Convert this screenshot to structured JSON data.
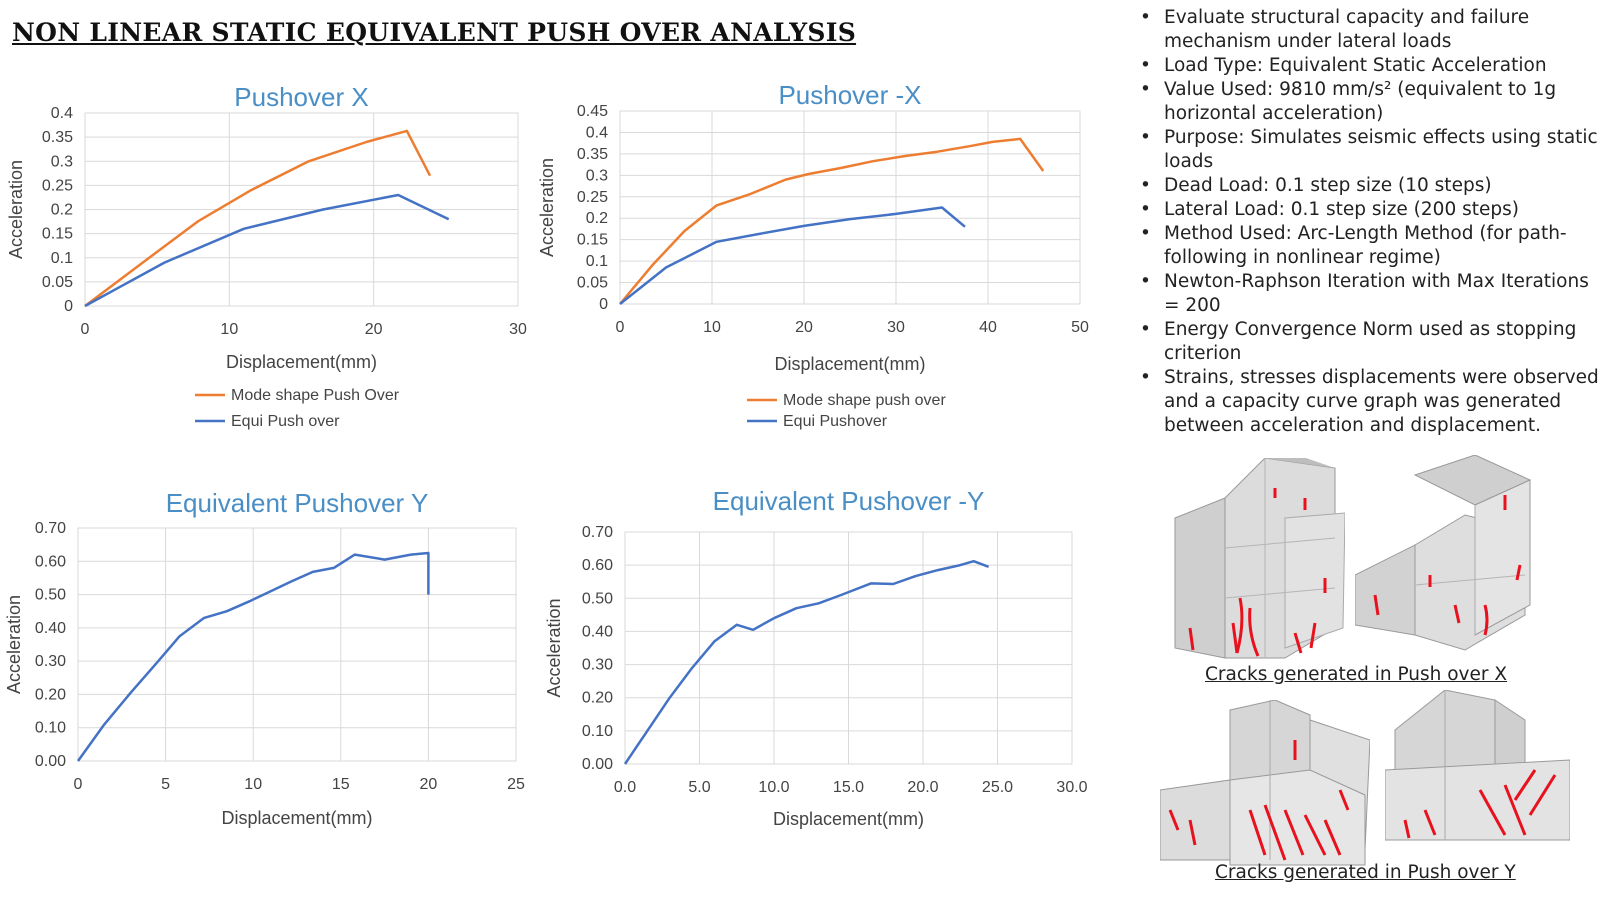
{
  "page": {
    "title": "NON LINEAR STATIC EQUIVALENT PUSH OVER ANALYSIS"
  },
  "notes": [
    "Evaluate structural capacity and failure mechanism under lateral loads",
    "Load Type: Equivalent Static Acceleration",
    "Value Used: 9810 mm/s² (equivalent to 1g horizontal acceleration)",
    "Purpose: Simulates seismic effects using static loads",
    "Dead Load: 0.1 step size (10 steps)",
    "Lateral Load: 0.1 step size (200 steps)",
    "Method Used: Arc-Length Method (for path-following in nonlinear regime)",
    "Newton-Raphson Iteration with Max Iterations = 200",
    "Energy Convergence Norm used as stopping criterion",
    "Strains, stresses displacements were observed and a capacity curve graph was generated between acceleration and displacement."
  ],
  "images": {
    "crack_x_caption": "Cracks generated in Push over X",
    "crack_y_caption": "Cracks generated in Push over Y"
  },
  "colors": {
    "orange": "#ed7d31",
    "blue": "#4472c4",
    "title_blue": "#4a8ec6",
    "crack_red": "#e8121e",
    "grid": "#d9d9d9"
  },
  "chart_data": [
    {
      "id": "pushover-x",
      "type": "line",
      "title": "Pushover X",
      "xlabel": "Displacement(mm)",
      "ylabel": "Acceleration",
      "xlim": [
        0,
        30
      ],
      "ylim": [
        0,
        0.4
      ],
      "xticks": [
        "0",
        "10",
        "20",
        "30"
      ],
      "yticks": [
        "0",
        "0.05",
        "0.1",
        "0.15",
        "0.2",
        "0.25",
        "0.3",
        "0.35",
        "0.4"
      ],
      "grid": true,
      "legend": "bottom",
      "series": [
        {
          "name": "Mode shape Push Over",
          "color": "#ed7d31",
          "x": [
            0,
            4,
            7.8,
            11.5,
            15.5,
            19.5,
            22.3,
            23.9
          ],
          "y": [
            0,
            0.09,
            0.175,
            0.24,
            0.3,
            0.34,
            0.363,
            0.27
          ]
        },
        {
          "name": "Equi Push over",
          "color": "#4472c4",
          "x": [
            0,
            5.5,
            11,
            16.5,
            21.7,
            25.2
          ],
          "y": [
            0,
            0.09,
            0.16,
            0.2,
            0.23,
            0.18
          ]
        }
      ]
    },
    {
      "id": "pushover-neg-x",
      "type": "line",
      "title": "Pushover -X",
      "xlabel": "Displacement(mm)",
      "ylabel": "Acceleration",
      "xlim": [
        0,
        50
      ],
      "ylim": [
        0,
        0.45
      ],
      "xticks": [
        "0",
        "10",
        "20",
        "30",
        "40",
        "50"
      ],
      "yticks": [
        "0",
        "0.05",
        "0.1",
        "0.15",
        "0.2",
        "0.25",
        "0.3",
        "0.35",
        "0.4",
        "0.45"
      ],
      "grid": true,
      "legend": "bottom",
      "series": [
        {
          "name": "Mode shape push over",
          "color": "#ed7d31",
          "x": [
            0,
            3.5,
            7,
            10.5,
            14,
            18,
            20.5,
            24,
            27.5,
            31,
            34.5,
            38,
            40.5,
            43.5,
            46
          ],
          "y": [
            0,
            0.09,
            0.17,
            0.23,
            0.255,
            0.29,
            0.303,
            0.317,
            0.333,
            0.345,
            0.355,
            0.368,
            0.378,
            0.385,
            0.31
          ]
        },
        {
          "name": "Equi Pushover",
          "color": "#4472c4",
          "x": [
            0,
            5,
            10.5,
            15,
            20,
            25,
            30,
            35,
            37.5
          ],
          "y": [
            0,
            0.085,
            0.145,
            0.163,
            0.182,
            0.198,
            0.21,
            0.225,
            0.18
          ]
        }
      ]
    },
    {
      "id": "equivalent-pushover-y",
      "type": "line",
      "title": "Equivalent Pushover Y",
      "xlabel": "Displacement(mm)",
      "ylabel": "Acceleration",
      "xlim": [
        0,
        25
      ],
      "ylim": [
        0,
        0.7
      ],
      "xticks": [
        "0",
        "5",
        "10",
        "15",
        "20",
        "25"
      ],
      "yticks": [
        "0.00",
        "0.10",
        "0.20",
        "0.30",
        "0.40",
        "0.50",
        "0.60",
        "0.70"
      ],
      "grid": true,
      "legend": "none",
      "series": [
        {
          "color": "#4472c4",
          "x": [
            0,
            1.5,
            3,
            4.5,
            5.8,
            7.2,
            8.5,
            9.8,
            11,
            12.2,
            13.4,
            14.6,
            15.8,
            17.5,
            19,
            20,
            20
          ],
          "y": [
            0,
            0.11,
            0.205,
            0.295,
            0.375,
            0.43,
            0.45,
            0.48,
            0.51,
            0.54,
            0.568,
            0.58,
            0.62,
            0.605,
            0.62,
            0.625,
            0.5
          ]
        }
      ]
    },
    {
      "id": "equivalent-pushover-neg-y",
      "type": "line",
      "title": "Equivalent Pushover -Y",
      "xlabel": "Displacement(mm)",
      "ylabel": "Acceleration",
      "xlim": [
        0,
        30
      ],
      "ylim": [
        0,
        0.7
      ],
      "xticks": [
        "0.0",
        "5.0",
        "10.0",
        "15.0",
        "20.0",
        "25.0",
        "30.0"
      ],
      "yticks": [
        "0.00",
        "0.10",
        "0.20",
        "0.30",
        "0.40",
        "0.50",
        "0.60",
        "0.70"
      ],
      "grid": true,
      "legend": "none",
      "series": [
        {
          "color": "#4472c4",
          "x": [
            0,
            1.5,
            3,
            4.5,
            6,
            7.5,
            8.6,
            10,
            11.5,
            13,
            14.5,
            16.5,
            18,
            19.5,
            21,
            22.5,
            23.4,
            24.4
          ],
          "y": [
            0,
            0.1,
            0.2,
            0.29,
            0.37,
            0.42,
            0.405,
            0.44,
            0.47,
            0.485,
            0.51,
            0.545,
            0.543,
            0.567,
            0.585,
            0.6,
            0.612,
            0.595
          ]
        }
      ]
    }
  ]
}
